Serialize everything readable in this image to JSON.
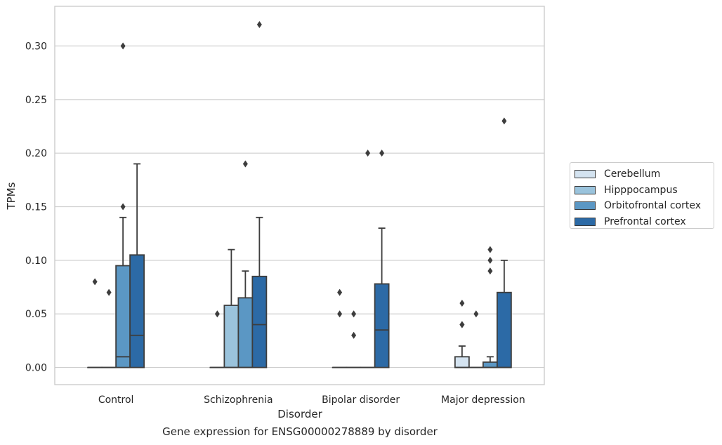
{
  "chart_data": {
    "type": "box",
    "xlabel": "Disorder",
    "ylabel": "TPMs",
    "caption": "Gene expression for ENSG00000278889 by disorder",
    "categories": [
      "Control",
      "Schizophrenia",
      "Bipolar disorder",
      "Major depression"
    ],
    "ylim": [
      -0.016,
      0.337
    ],
    "yticks": [
      "0.00",
      "0.05",
      "0.10",
      "0.15",
      "0.20",
      "0.25",
      "0.30"
    ],
    "grid": "horizontal",
    "legend_position": "right",
    "series": [
      {
        "name": "Cerebellum",
        "color": "#d4e3f0",
        "boxes": [
          {
            "q1": 0.0,
            "median": 0.0,
            "q3": 0.0,
            "whisker_low": 0.0,
            "whisker_high": 0.0,
            "outliers": [
              0.08
            ]
          },
          {
            "q1": 0.0,
            "median": 0.0,
            "q3": 0.0,
            "whisker_low": 0.0,
            "whisker_high": 0.0,
            "outliers": [
              0.05
            ]
          },
          {
            "q1": 0.0,
            "median": 0.0,
            "q3": 0.0,
            "whisker_low": 0.0,
            "whisker_high": 0.0,
            "outliers": [
              0.07,
              0.05
            ]
          },
          {
            "q1": 0.0,
            "median": 0.0,
            "q3": 0.01,
            "whisker_low": 0.0,
            "whisker_high": 0.02,
            "outliers": [
              0.06,
              0.04,
              0.04
            ]
          }
        ]
      },
      {
        "name": "Hipppocampus",
        "color": "#9ac3dc",
        "boxes": [
          {
            "q1": 0.0,
            "median": 0.0,
            "q3": 0.0,
            "whisker_low": 0.0,
            "whisker_high": 0.0,
            "outliers": [
              0.07
            ]
          },
          {
            "q1": 0.0,
            "median": 0.0,
            "q3": 0.058,
            "whisker_low": 0.0,
            "whisker_high": 0.11,
            "outliers": []
          },
          {
            "q1": 0.0,
            "median": 0.0,
            "q3": 0.0,
            "whisker_low": 0.0,
            "whisker_high": 0.0,
            "outliers": [
              0.05,
              0.03
            ]
          },
          {
            "q1": 0.0,
            "median": 0.0,
            "q3": 0.0,
            "whisker_low": 0.0,
            "whisker_high": 0.0,
            "outliers": [
              0.05
            ]
          }
        ]
      },
      {
        "name": "Orbitofrontal cortex",
        "color": "#5b97c4",
        "boxes": [
          {
            "q1": 0.0,
            "median": 0.01,
            "q3": 0.095,
            "whisker_low": 0.0,
            "whisker_high": 0.14,
            "outliers": [
              0.15,
              0.3
            ]
          },
          {
            "q1": 0.0,
            "median": 0.0,
            "q3": 0.065,
            "whisker_low": 0.0,
            "whisker_high": 0.09,
            "outliers": [
              0.19
            ]
          },
          {
            "q1": 0.0,
            "median": 0.0,
            "q3": 0.0,
            "whisker_low": 0.0,
            "whisker_high": 0.0,
            "outliers": [
              0.2
            ]
          },
          {
            "q1": 0.0,
            "median": 0.0,
            "q3": 0.005,
            "whisker_low": 0.0,
            "whisker_high": 0.01,
            "outliers": [
              0.09,
              0.1,
              0.11
            ]
          }
        ]
      },
      {
        "name": "Prefrontal cortex",
        "color": "#2c6aa6",
        "boxes": [
          {
            "q1": 0.0,
            "median": 0.03,
            "q3": 0.105,
            "whisker_low": 0.0,
            "whisker_high": 0.19,
            "outliers": []
          },
          {
            "q1": 0.0,
            "median": 0.04,
            "q3": 0.085,
            "whisker_low": 0.0,
            "whisker_high": 0.14,
            "outliers": [
              0.32
            ]
          },
          {
            "q1": 0.0,
            "median": 0.035,
            "q3": 0.078,
            "whisker_low": 0.0,
            "whisker_high": 0.13,
            "outliers": [
              0.2
            ]
          },
          {
            "q1": 0.0,
            "median": 0.0,
            "q3": 0.07,
            "whisker_low": 0.0,
            "whisker_high": 0.1,
            "outliers": [
              0.23
            ]
          }
        ]
      }
    ]
  }
}
